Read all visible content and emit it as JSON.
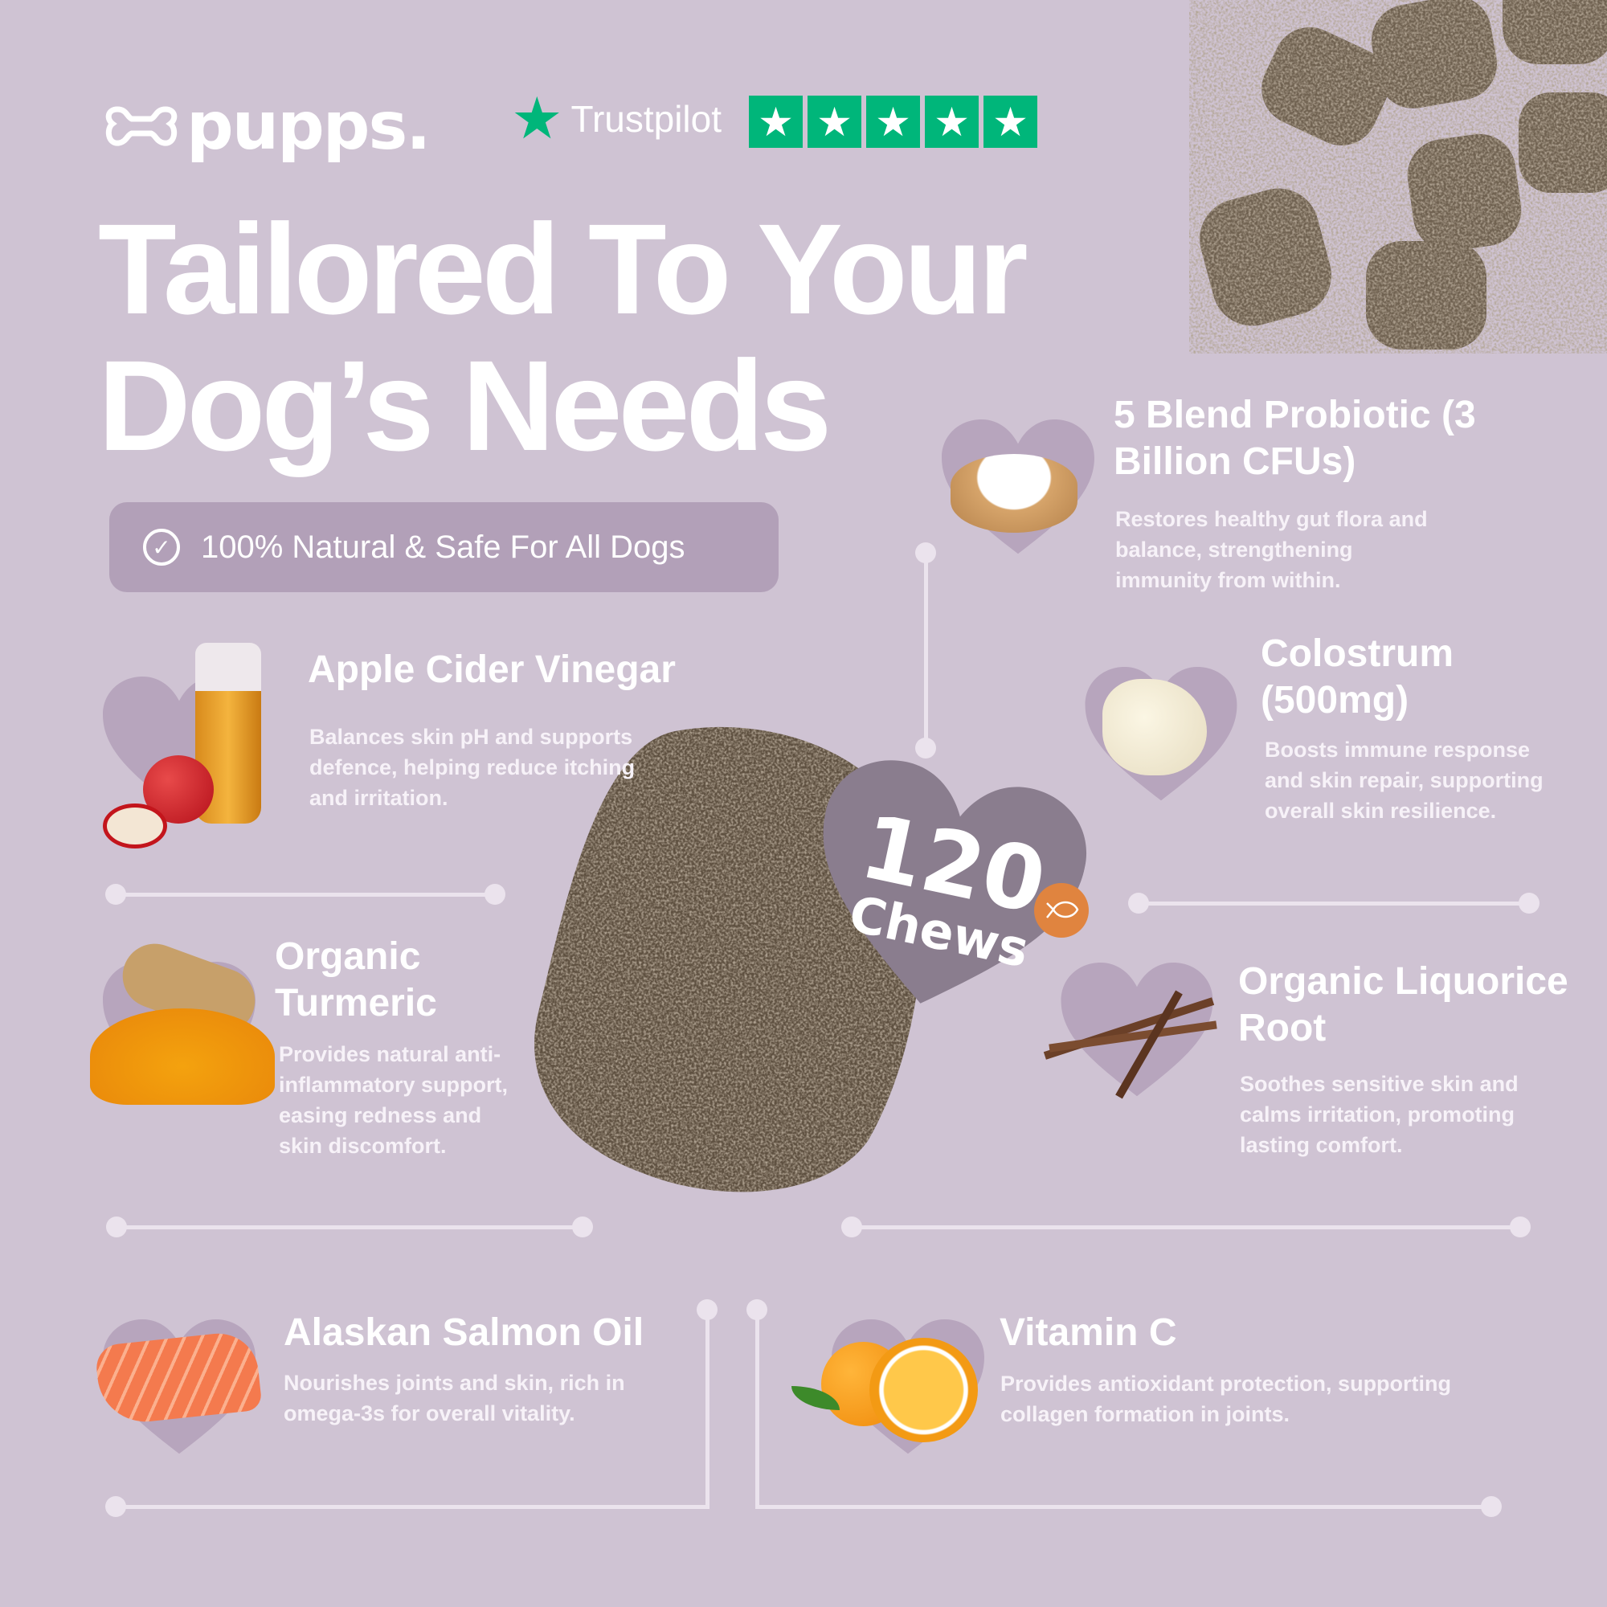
{
  "brand": {
    "logo_text": "pupps.",
    "logo_icon": "bone-icon"
  },
  "trustpilot": {
    "label": "Trustpilot",
    "stars": 5,
    "rating_color": "#00b67a"
  },
  "headline": {
    "line1": "Tailored To Your",
    "line2": "Dog’s Needs"
  },
  "badge": {
    "icon": "check-circle-icon",
    "text": "100% Natural & Safe For All Dogs"
  },
  "center": {
    "count": "120",
    "unit": "Chews",
    "flavor_icon": "fish-icon"
  },
  "ingredients": [
    {
      "title": "Apple Cider Vinegar",
      "desc": "Balances skin pH and supports defence, helping reduce itching and irritation."
    },
    {
      "title": "5 Blend Probiotic (3 Billion CFUs)",
      "desc": "Restores healthy gut flora and balance, strengthening immunity from within."
    },
    {
      "title": "Colostrum (500mg)",
      "desc": "Boosts immune response and skin repair, supporting overall skin resilience."
    },
    {
      "title": "Organic Turmeric",
      "desc": "Provides natural anti-inflammatory support, easing redness and skin discomfort."
    },
    {
      "title": "Organic Liquorice Root",
      "desc": "Soothes sensitive skin and calms irritation, promoting lasting comfort."
    },
    {
      "title": "Alaskan Salmon Oil",
      "desc": "Nourishes joints and skin, rich in omega-3s for overall vitality."
    },
    {
      "title": "Vitamin C",
      "desc": "Provides antioxidant protection, supporting collagen formation in joints."
    }
  ],
  "colors": {
    "background": "#cfc3d3",
    "heart": "#b7a5bd",
    "center_heart": "#8a7d8e",
    "accent": "#e0843f"
  }
}
